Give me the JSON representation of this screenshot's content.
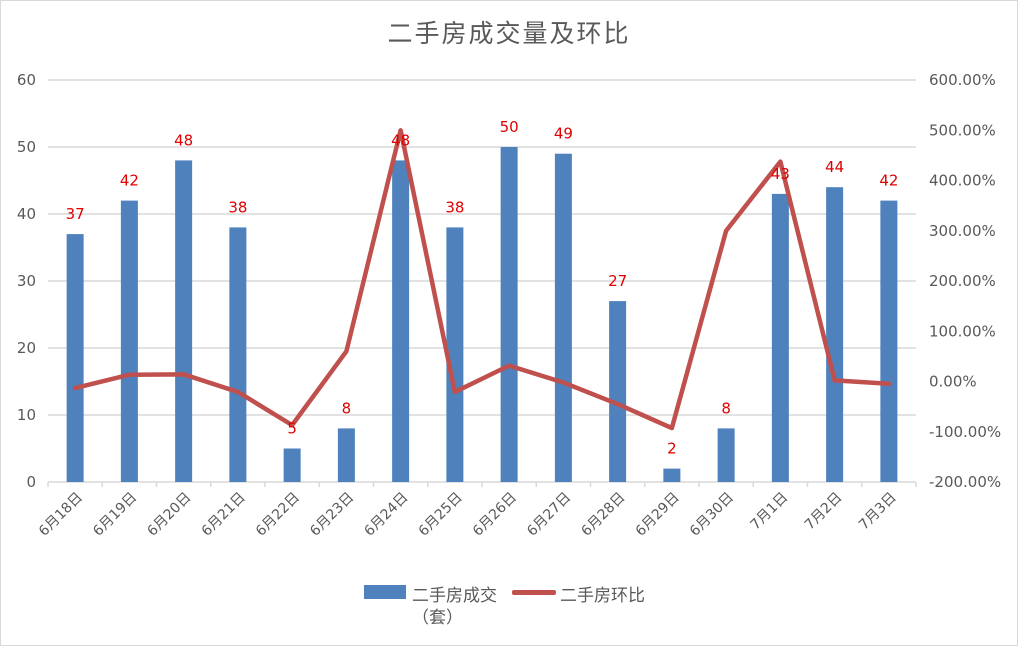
{
  "chart": {
    "title": "二手房成交量及环比",
    "left_axis_ticks": [
      "0",
      "10",
      "20",
      "30",
      "40",
      "50",
      "60"
    ],
    "right_axis_ticks": [
      "-200.00%",
      "-100.00%",
      "0.00%",
      "100.00%",
      "200.00%",
      "300.00%",
      "400.00%",
      "500.00%",
      "600.00%"
    ],
    "legend": {
      "bar_label_line1": "二手房成交",
      "bar_label_line2": "（套）",
      "line_label": "二手房环比"
    },
    "colors": {
      "bar": "#4f81bd",
      "line": "#c0504d",
      "data_label": "#e00000",
      "grid": "#d9d9d9",
      "text": "#595959"
    }
  },
  "chart_data": {
    "type": "bar+line",
    "title": "二手房成交量及环比",
    "categories": [
      "6月18日",
      "6月19日",
      "6月20日",
      "6月21日",
      "6月22日",
      "6月23日",
      "6月24日",
      "6月25日",
      "6月26日",
      "6月27日",
      "6月28日",
      "6月29日",
      "6月30日",
      "7月1日",
      "7月2日",
      "7月3日"
    ],
    "series": [
      {
        "name": "二手房成交（套）",
        "type": "bar",
        "axis": "left",
        "values": [
          37,
          42,
          48,
          38,
          5,
          8,
          48,
          38,
          50,
          49,
          27,
          2,
          8,
          43,
          44,
          42
        ]
      },
      {
        "name": "二手房环比",
        "type": "line",
        "axis": "right",
        "unit": "%",
        "values": [
          -13,
          13.5,
          14.3,
          -20.8,
          -86.8,
          60,
          500,
          -20.8,
          31.6,
          -2,
          -44.9,
          -92.6,
          300,
          437.5,
          2.3,
          -4.5
        ]
      }
    ],
    "xlabel": "",
    "ylabel_left": "",
    "ylabel_right": "",
    "ylim_left": [
      0,
      60
    ],
    "ylim_right": [
      -200,
      600
    ],
    "grid": true,
    "legend_position": "bottom"
  }
}
